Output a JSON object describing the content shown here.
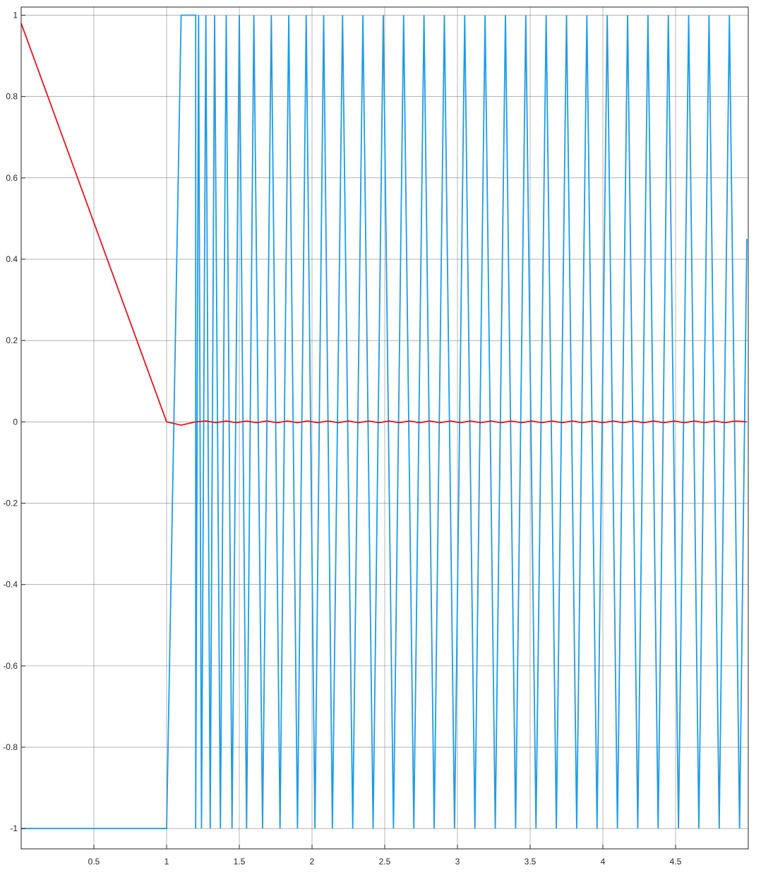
{
  "chart_data": {
    "type": "line",
    "title": "",
    "xlabel": "",
    "ylabel": "",
    "xlim": [
      0,
      5
    ],
    "ylim": [
      -1.05,
      1.02
    ],
    "grid": true,
    "legend": "none",
    "x_ticks": [
      0.5,
      1,
      1.5,
      2,
      2.5,
      3,
      3.5,
      4,
      4.5
    ],
    "x_tick_labels": [
      "0.5",
      "1",
      "1.5",
      "2",
      "2.5",
      "3",
      "3.5",
      "4",
      "4.5"
    ],
    "y_ticks": [
      1,
      0.8,
      0.6,
      0.4,
      0.2,
      0,
      -0.2,
      -0.4,
      -0.6,
      -0.8,
      -1
    ],
    "y_tick_labels": [
      "1",
      "0.8",
      "0.6",
      "0.4",
      "0.2",
      "0",
      "-0.2",
      "-0.4",
      "-0.6",
      "-0.8",
      "-1"
    ],
    "series": [
      {
        "color": "#1e9be8",
        "x": [
          0,
          1.0,
          1.1,
          1.2,
          1.2,
          1.22,
          1.24,
          1.27,
          1.3,
          1.33,
          1.37,
          1.41,
          1.45,
          1.5,
          1.55,
          1.6,
          1.66,
          1.72,
          1.78,
          1.84,
          1.9,
          1.96,
          2.02,
          2.08,
          2.14,
          2.21,
          2.28,
          2.35,
          2.42,
          2.49,
          2.56,
          2.63,
          2.7,
          2.77,
          2.84,
          2.91,
          2.98,
          3.05,
          3.12,
          3.19,
          3.26,
          3.33,
          3.4,
          3.47,
          3.54,
          3.61,
          3.68,
          3.75,
          3.82,
          3.89,
          3.96,
          4.03,
          4.1,
          4.17,
          4.24,
          4.31,
          4.38,
          4.45,
          4.52,
          4.59,
          4.66,
          4.73,
          4.8,
          4.87,
          4.94,
          4.99
        ],
        "y": [
          -1,
          -1,
          1,
          1,
          -1,
          1,
          -1,
          1,
          -1,
          1,
          -1,
          1,
          -1,
          1,
          -1,
          1,
          -1,
          1,
          -1,
          1,
          -1,
          1,
          -1,
          1,
          -1,
          1,
          -1,
          1,
          -1,
          1,
          -1,
          1,
          -1,
          1,
          -1,
          1,
          -1,
          1,
          -1,
          1,
          -1,
          1,
          -1,
          1,
          -1,
          1,
          -1,
          1,
          -1,
          1,
          -1,
          1,
          -1,
          1,
          -1,
          1,
          -1,
          1,
          -1,
          1,
          -1,
          1,
          -1,
          1,
          -1,
          0.45
        ]
      },
      {
        "color": "#e8141b",
        "x": [
          0,
          1.0,
          1.1,
          1.2,
          1.27,
          1.34,
          1.41,
          1.48,
          1.55,
          1.62,
          1.69,
          1.76,
          1.83,
          1.9,
          1.97,
          2.04,
          2.11,
          2.18,
          2.25,
          2.32,
          2.39,
          2.46,
          2.53,
          2.6,
          2.67,
          2.74,
          2.81,
          2.88,
          2.95,
          3.02,
          3.09,
          3.16,
          3.23,
          3.3,
          3.37,
          3.44,
          3.51,
          3.58,
          3.65,
          3.72,
          3.79,
          3.86,
          3.93,
          4.0,
          4.07,
          4.14,
          4.21,
          4.28,
          4.35,
          4.42,
          4.49,
          4.56,
          4.63,
          4.7,
          4.77,
          4.84,
          4.91,
          4.99
        ],
        "y": [
          0.98,
          0,
          -0.008,
          0,
          0.002,
          -0.002,
          0.002,
          -0.002,
          0.002,
          -0.002,
          0.002,
          -0.002,
          0.002,
          -0.002,
          0.002,
          -0.002,
          0.002,
          -0.002,
          0.002,
          -0.002,
          0.002,
          -0.002,
          0.002,
          -0.002,
          0.002,
          -0.002,
          0.002,
          -0.002,
          0.002,
          -0.002,
          0.002,
          -0.002,
          0.002,
          -0.002,
          0.002,
          -0.002,
          0.002,
          -0.002,
          0.002,
          -0.002,
          0.002,
          -0.002,
          0.002,
          -0.002,
          0.002,
          -0.002,
          0.002,
          -0.002,
          0.002,
          -0.002,
          0.002,
          -0.002,
          0.002,
          -0.002,
          0.002,
          -0.002,
          0.002,
          0
        ]
      }
    ]
  }
}
